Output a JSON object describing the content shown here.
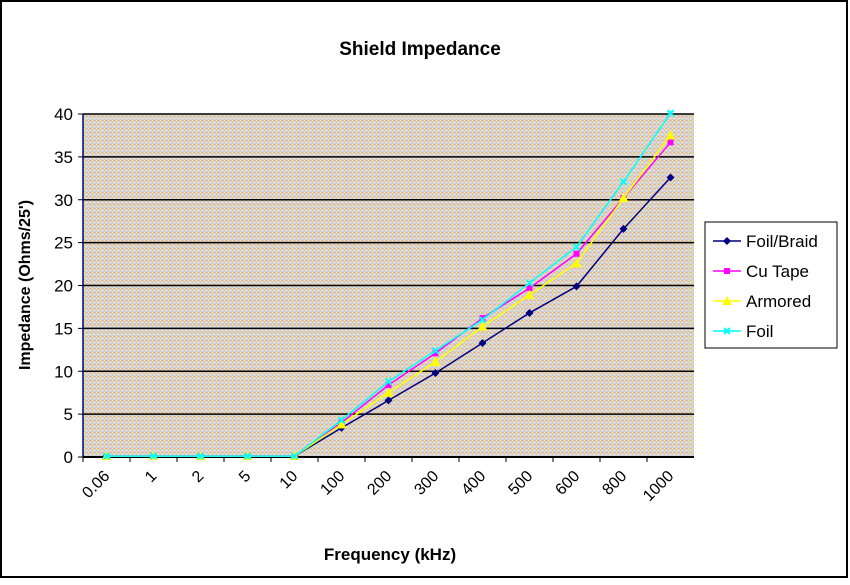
{
  "chart_data": {
    "type": "line",
    "title": "Shield Impedance",
    "xlabel": "Frequency (kHz)",
    "ylabel": "Impedance (Ohms/25')",
    "categories": [
      "0.06",
      "1",
      "2",
      "5",
      "10",
      "100",
      "200",
      "300",
      "400",
      "500",
      "600",
      "800",
      "1000"
    ],
    "ylim": [
      0,
      40
    ],
    "yticks": [
      "0",
      "5",
      "10",
      "15",
      "20",
      "25",
      "30",
      "35",
      "40"
    ],
    "grid": true,
    "legend": "right",
    "series": [
      {
        "name": "Foil/Braid",
        "color": "#000080",
        "marker": "diamond",
        "values": [
          0.1,
          0.1,
          0.1,
          0.1,
          0.1,
          3.4,
          6.6,
          9.8,
          13.3,
          16.8,
          19.9,
          26.6,
          32.6
        ]
      },
      {
        "name": "Cu Tape",
        "color": "#ff00ff",
        "marker": "square",
        "values": [
          0.1,
          0.1,
          0.1,
          0.1,
          0.1,
          4.0,
          8.4,
          12.1,
          16.2,
          19.7,
          23.7,
          30.2,
          36.7
        ]
      },
      {
        "name": "Armored",
        "color": "#ffff00",
        "marker": "triangle",
        "values": [
          0.1,
          0.1,
          0.1,
          0.1,
          0.1,
          3.8,
          7.5,
          11.1,
          15.2,
          18.9,
          22.6,
          30.2,
          37.5
        ]
      },
      {
        "name": "Foil",
        "color": "#00ffff",
        "marker": "x",
        "values": [
          0.1,
          0.1,
          0.1,
          0.1,
          0.1,
          4.3,
          8.8,
          12.4,
          16.0,
          20.3,
          24.5,
          32.1,
          40.1
        ]
      }
    ]
  }
}
